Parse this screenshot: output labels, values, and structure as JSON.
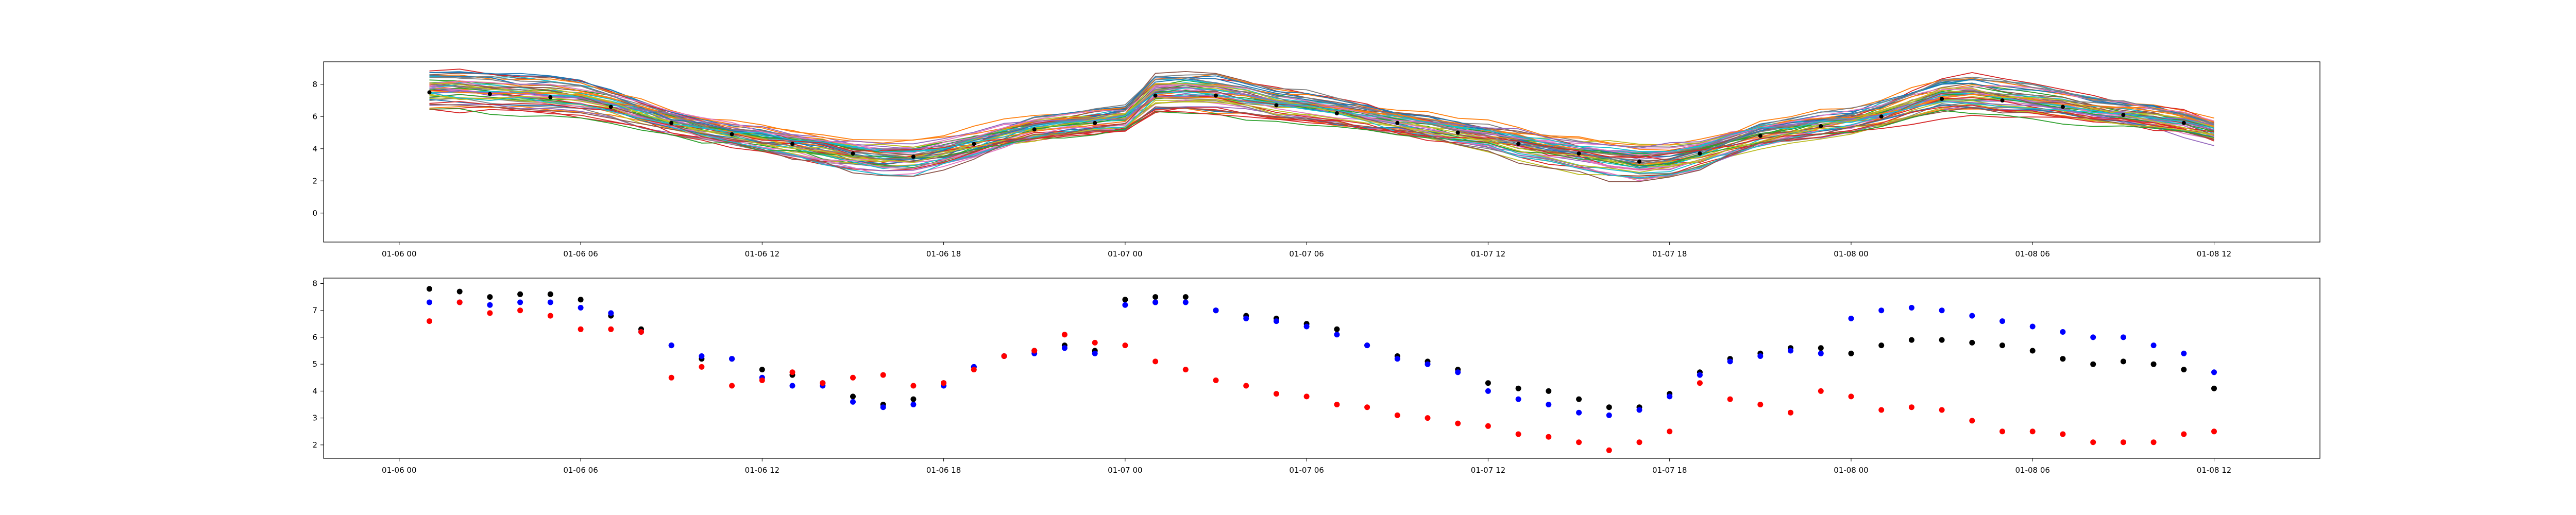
{
  "chart_data": [
    {
      "type": "line",
      "title": "",
      "xlabel": "",
      "ylabel": "",
      "x_tick_labels": [
        "01-06 00",
        "01-06 06",
        "01-06 12",
        "01-06 18",
        "01-07 00",
        "01-07 06",
        "01-07 12",
        "01-07 18",
        "01-08 00",
        "01-08 06",
        "01-08 12"
      ],
      "x_tick_hours": [
        0,
        6,
        12,
        18,
        24,
        30,
        36,
        42,
        48,
        54,
        60
      ],
      "y_ticks": [
        0,
        2,
        4,
        6,
        8
      ],
      "xlim": [
        -2.5,
        63.5
      ],
      "ylim": [
        -1.8,
        9.4
      ],
      "grid": false,
      "ensemble_note_count": 50,
      "x_hours": [
        1,
        2,
        3,
        4,
        5,
        6,
        7,
        8,
        9,
        10,
        11,
        12,
        13,
        14,
        15,
        16,
        17,
        18,
        19,
        20,
        21,
        22,
        23,
        24,
        25,
        26,
        27,
        28,
        29,
        30,
        31,
        32,
        33,
        34,
        35,
        36,
        37,
        38,
        39,
        40,
        41,
        42,
        43,
        44,
        45,
        46,
        47,
        48,
        49,
        50,
        51,
        52,
        53,
        54,
        55,
        56,
        57,
        58,
        59,
        60
      ],
      "ensemble_mean": [
        7.5,
        7.5,
        7.4,
        7.3,
        7.2,
        7.0,
        6.6,
        6.1,
        5.6,
        5.2,
        4.9,
        4.6,
        4.3,
        4.0,
        3.7,
        3.5,
        3.5,
        3.8,
        4.3,
        4.8,
        5.2,
        5.4,
        5.6,
        5.8,
        7.3,
        7.4,
        7.3,
        7.0,
        6.7,
        6.5,
        6.2,
        5.9,
        5.6,
        5.3,
        5.0,
        4.7,
        4.3,
        4.0,
        3.7,
        3.4,
        3.2,
        3.3,
        3.7,
        4.3,
        4.8,
        5.1,
        5.4,
        5.6,
        6.0,
        6.6,
        7.1,
        7.2,
        7.0,
        6.8,
        6.6,
        6.3,
        6.1,
        5.9,
        5.6,
        5.1
      ],
      "series_colors": [
        "#1f77b4",
        "#ff7f0e",
        "#2ca02c",
        "#d62728",
        "#9467bd",
        "#8c564b",
        "#e377c2",
        "#7f7f7f",
        "#bcbd22",
        "#17becf"
      ]
    },
    {
      "type": "scatter",
      "title": "",
      "xlabel": "",
      "ylabel": "",
      "x_tick_labels": [
        "01-06 00",
        "01-06 06",
        "01-06 12",
        "01-06 18",
        "01-07 00",
        "01-07 06",
        "01-07 12",
        "01-07 18",
        "01-08 00",
        "01-08 06",
        "01-08 12"
      ],
      "x_tick_hours": [
        0,
        6,
        12,
        18,
        24,
        30,
        36,
        42,
        48,
        54,
        60
      ],
      "y_ticks": [
        2,
        3,
        4,
        5,
        6,
        7,
        8
      ],
      "xlim": [
        -2.5,
        63.5
      ],
      "ylim": [
        1.5,
        8.2
      ],
      "grid": false,
      "series": [
        {
          "color": "#000000",
          "points": [
            [
              1,
              7.8
            ],
            [
              2,
              7.7
            ],
            [
              3,
              7.5
            ],
            [
              4,
              7.6
            ],
            [
              5,
              7.6
            ],
            [
              6,
              7.4
            ],
            [
              7,
              6.8
            ],
            [
              8,
              6.3
            ],
            [
              9,
              5.7
            ],
            [
              10,
              5.2
            ],
            [
              11,
              5.2
            ],
            [
              12,
              4.8
            ],
            [
              13,
              4.6
            ],
            [
              14,
              4.3
            ],
            [
              15,
              3.8
            ],
            [
              16,
              3.5
            ],
            [
              17,
              3.7
            ],
            [
              18,
              4.3
            ],
            [
              19,
              4.9
            ],
            [
              20,
              5.3
            ],
            [
              21,
              5.5
            ],
            [
              22,
              5.7
            ],
            [
              23,
              5.5
            ],
            [
              24,
              7.4
            ],
            [
              25,
              7.5
            ],
            [
              25,
              7.3
            ],
            [
              26,
              7.5
            ],
            [
              27,
              7.0
            ],
            [
              28,
              6.8
            ],
            [
              29,
              6.7
            ],
            [
              30,
              6.5
            ],
            [
              31,
              6.3
            ],
            [
              32,
              5.7
            ],
            [
              33,
              5.3
            ],
            [
              34,
              5.1
            ],
            [
              35,
              4.8
            ],
            [
              36,
              4.3
            ],
            [
              37,
              4.1
            ],
            [
              38,
              4.0
            ],
            [
              39,
              3.7
            ],
            [
              40,
              3.4
            ],
            [
              41,
              3.4
            ],
            [
              42,
              3.9
            ],
            [
              43,
              4.7
            ],
            [
              44,
              5.2
            ],
            [
              45,
              5.4
            ],
            [
              46,
              5.6
            ],
            [
              47,
              5.6
            ],
            [
              48,
              5.4
            ],
            [
              49,
              5.7
            ],
            [
              50,
              5.9
            ],
            [
              51,
              5.9
            ],
            [
              52,
              5.8
            ],
            [
              53,
              5.7
            ],
            [
              54,
              5.5
            ],
            [
              55,
              5.2
            ],
            [
              56,
              5.0
            ],
            [
              57,
              5.1
            ],
            [
              58,
              5.0
            ],
            [
              59,
              4.8
            ],
            [
              60,
              4.1
            ]
          ]
        },
        {
          "color": "#0000ff",
          "points": [
            [
              1,
              7.3
            ],
            [
              2,
              7.3
            ],
            [
              3,
              7.2
            ],
            [
              4,
              7.3
            ],
            [
              5,
              7.3
            ],
            [
              6,
              7.1
            ],
            [
              7,
              6.9
            ],
            [
              8,
              6.2
            ],
            [
              9,
              5.7
            ],
            [
              10,
              5.3
            ],
            [
              11,
              5.2
            ],
            [
              12,
              4.5
            ],
            [
              13,
              4.2
            ],
            [
              14,
              4.2
            ],
            [
              15,
              3.6
            ],
            [
              16,
              3.4
            ],
            [
              17,
              3.5
            ],
            [
              18,
              4.2
            ],
            [
              19,
              4.9
            ],
            [
              20,
              5.3
            ],
            [
              21,
              5.4
            ],
            [
              22,
              5.6
            ],
            [
              23,
              5.4
            ],
            [
              24,
              7.2
            ],
            [
              25,
              7.3
            ],
            [
              26,
              7.3
            ],
            [
              27,
              7.0
            ],
            [
              28,
              6.7
            ],
            [
              29,
              6.6
            ],
            [
              30,
              6.4
            ],
            [
              31,
              6.1
            ],
            [
              32,
              5.7
            ],
            [
              33,
              5.2
            ],
            [
              34,
              5.0
            ],
            [
              35,
              4.7
            ],
            [
              36,
              4.0
            ],
            [
              37,
              3.7
            ],
            [
              38,
              3.5
            ],
            [
              39,
              3.2
            ],
            [
              40,
              3.1
            ],
            [
              41,
              3.3
            ],
            [
              42,
              3.8
            ],
            [
              43,
              4.6
            ],
            [
              44,
              5.1
            ],
            [
              45,
              5.3
            ],
            [
              46,
              5.5
            ],
            [
              47,
              5.4
            ],
            [
              48,
              6.7
            ],
            [
              49,
              7.0
            ],
            [
              50,
              7.1
            ],
            [
              51,
              7.0
            ],
            [
              52,
              6.8
            ],
            [
              53,
              6.6
            ],
            [
              54,
              6.4
            ],
            [
              55,
              6.2
            ],
            [
              56,
              6.0
            ],
            [
              57,
              6.0
            ],
            [
              58,
              5.7
            ],
            [
              59,
              5.4
            ],
            [
              60,
              4.7
            ]
          ]
        },
        {
          "color": "#ff0000",
          "points": [
            [
              1,
              6.6
            ],
            [
              2,
              7.3
            ],
            [
              3,
              6.9
            ],
            [
              4,
              7.0
            ],
            [
              5,
              6.8
            ],
            [
              6,
              6.3
            ],
            [
              7,
              6.3
            ],
            [
              8,
              6.2
            ],
            [
              9,
              4.5
            ],
            [
              10,
              4.9
            ],
            [
              11,
              4.2
            ],
            [
              12,
              4.4
            ],
            [
              13,
              4.7
            ],
            [
              14,
              4.3
            ],
            [
              15,
              4.5
            ],
            [
              16,
              4.6
            ],
            [
              17,
              4.2
            ],
            [
              18,
              4.3
            ],
            [
              19,
              4.8
            ],
            [
              20,
              5.3
            ],
            [
              21,
              5.5
            ],
            [
              22,
              6.1
            ],
            [
              23,
              5.8
            ],
            [
              24,
              5.7
            ],
            [
              25,
              5.1
            ],
            [
              26,
              4.8
            ],
            [
              27,
              4.4
            ],
            [
              28,
              4.2
            ],
            [
              29,
              3.9
            ],
            [
              30,
              3.8
            ],
            [
              31,
              3.5
            ],
            [
              32,
              3.4
            ],
            [
              33,
              3.1
            ],
            [
              34,
              3.0
            ],
            [
              35,
              2.8
            ],
            [
              36,
              2.7
            ],
            [
              37,
              2.4
            ],
            [
              38,
              2.3
            ],
            [
              39,
              2.1
            ],
            [
              40,
              1.8
            ],
            [
              41,
              2.1
            ],
            [
              42,
              2.5
            ],
            [
              43,
              4.3
            ],
            [
              44,
              3.7
            ],
            [
              45,
              3.5
            ],
            [
              46,
              3.2
            ],
            [
              47,
              4.0
            ],
            [
              48,
              3.8
            ],
            [
              49,
              3.3
            ],
            [
              50,
              3.4
            ],
            [
              51,
              3.3
            ],
            [
              52,
              2.9
            ],
            [
              53,
              2.5
            ],
            [
              54,
              2.5
            ],
            [
              55,
              2.4
            ],
            [
              56,
              2.1
            ],
            [
              57,
              2.1
            ],
            [
              58,
              2.1
            ],
            [
              59,
              2.4
            ],
            [
              60,
              2.5
            ]
          ]
        }
      ]
    }
  ]
}
